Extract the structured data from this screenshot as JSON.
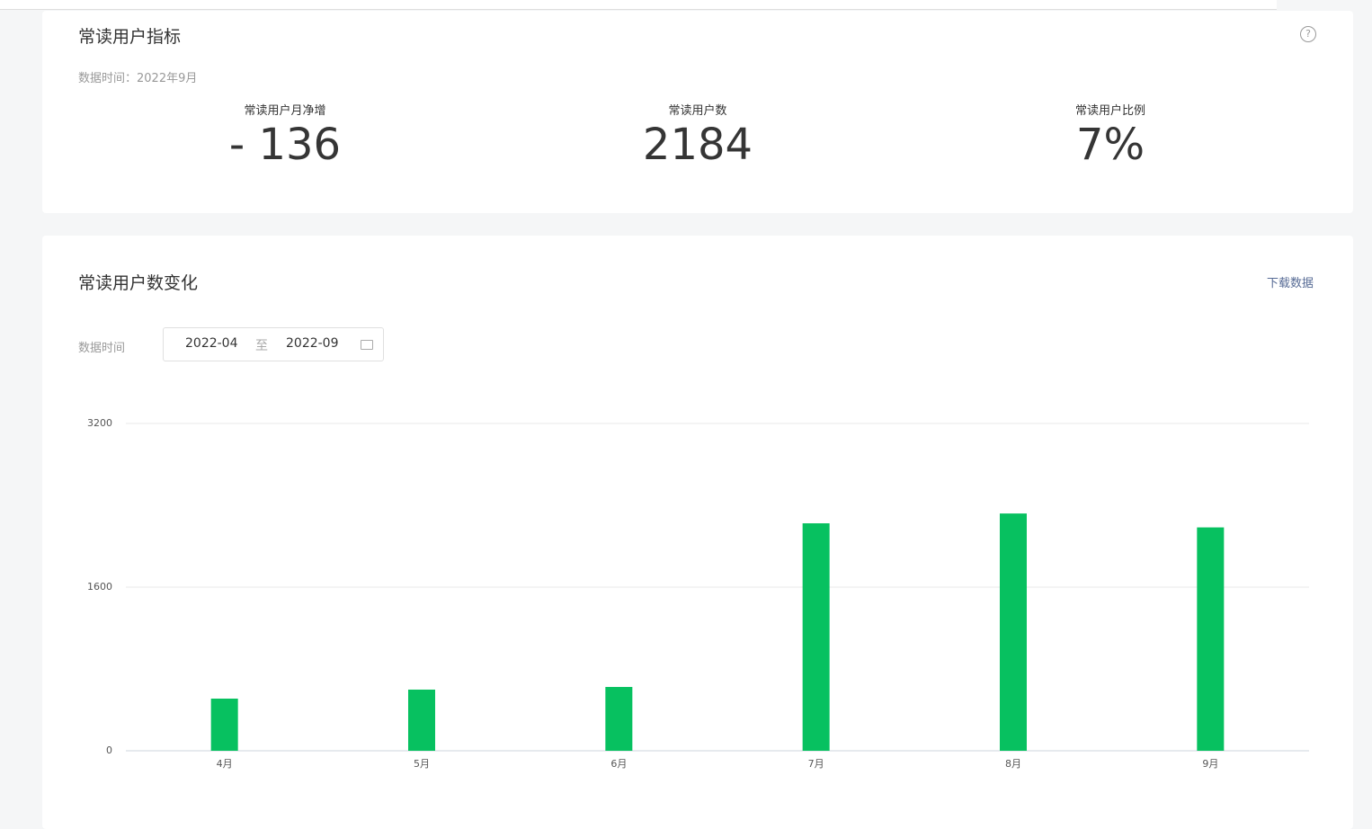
{
  "summary": {
    "title": "常读用户指标",
    "data_time": "数据时间：2022年9月",
    "metrics": [
      {
        "label": "常读用户月净增",
        "value": "- 136"
      },
      {
        "label": "常读用户数",
        "value": "2184"
      },
      {
        "label": "常读用户比例",
        "value": "7%"
      }
    ]
  },
  "trend": {
    "title": "常读用户数变化",
    "download": "下载数据",
    "filter_label": "数据时间",
    "start": "2022-04",
    "separator": "至",
    "end": "2022-09"
  },
  "chart_data": {
    "type": "bar",
    "categories": [
      "4月",
      "5月",
      "6月",
      "7月",
      "8月",
      "9月"
    ],
    "values": [
      510,
      598,
      624,
      2224,
      2320,
      2184
    ],
    "color": "#07c160",
    "ylim": [
      0,
      3200
    ],
    "yticks": [
      0,
      1600,
      3200
    ],
    "grid": true
  }
}
